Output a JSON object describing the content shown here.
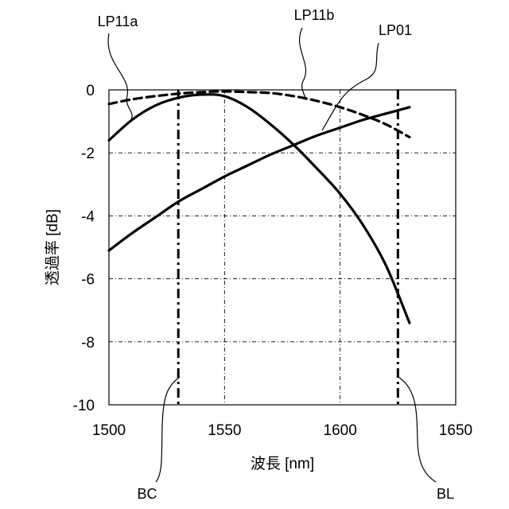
{
  "chart_data": {
    "type": "line",
    "xlabel": "波長 [nm]",
    "ylabel": "透過率 [dB]",
    "xlim": [
      1500,
      1650
    ],
    "ylim": [
      -10,
      0
    ],
    "x_ticks": [
      "1500",
      "1550",
      "1600",
      "1650"
    ],
    "y_ticks": [
      "0",
      "-2",
      "-4",
      "-6",
      "-8",
      "-10"
    ],
    "grid": true,
    "series": [
      {
        "name": "LP11a",
        "style": "solid",
        "x": [
          1500,
          1510,
          1520,
          1530,
          1540,
          1550,
          1560,
          1570,
          1580,
          1590,
          1600,
          1610,
          1620,
          1630
        ],
        "y": [
          -1.6,
          -0.95,
          -0.5,
          -0.25,
          -0.15,
          -0.2,
          -0.55,
          -1.1,
          -1.75,
          -2.5,
          -3.3,
          -4.3,
          -5.6,
          -7.4
        ]
      },
      {
        "name": "LP11b",
        "style": "dashed",
        "x": [
          1500,
          1510,
          1520,
          1530,
          1540,
          1550,
          1560,
          1570,
          1580,
          1590,
          1600,
          1610,
          1620,
          1630
        ],
        "y": [
          -0.45,
          -0.3,
          -0.2,
          -0.12,
          -0.07,
          -0.05,
          -0.07,
          -0.1,
          -0.2,
          -0.35,
          -0.55,
          -0.8,
          -1.1,
          -1.5
        ]
      },
      {
        "name": "LP01",
        "style": "solid",
        "x": [
          1500,
          1510,
          1520,
          1530,
          1540,
          1550,
          1560,
          1570,
          1580,
          1590,
          1600,
          1610,
          1620,
          1630
        ],
        "y": [
          -5.1,
          -4.55,
          -4.05,
          -3.55,
          -3.15,
          -2.75,
          -2.4,
          -2.05,
          -1.75,
          -1.45,
          -1.2,
          -0.95,
          -0.75,
          -0.55
        ]
      }
    ],
    "vlines": [
      {
        "name": "BC",
        "x": 1530
      },
      {
        "name": "BL",
        "x": 1625
      }
    ]
  }
}
